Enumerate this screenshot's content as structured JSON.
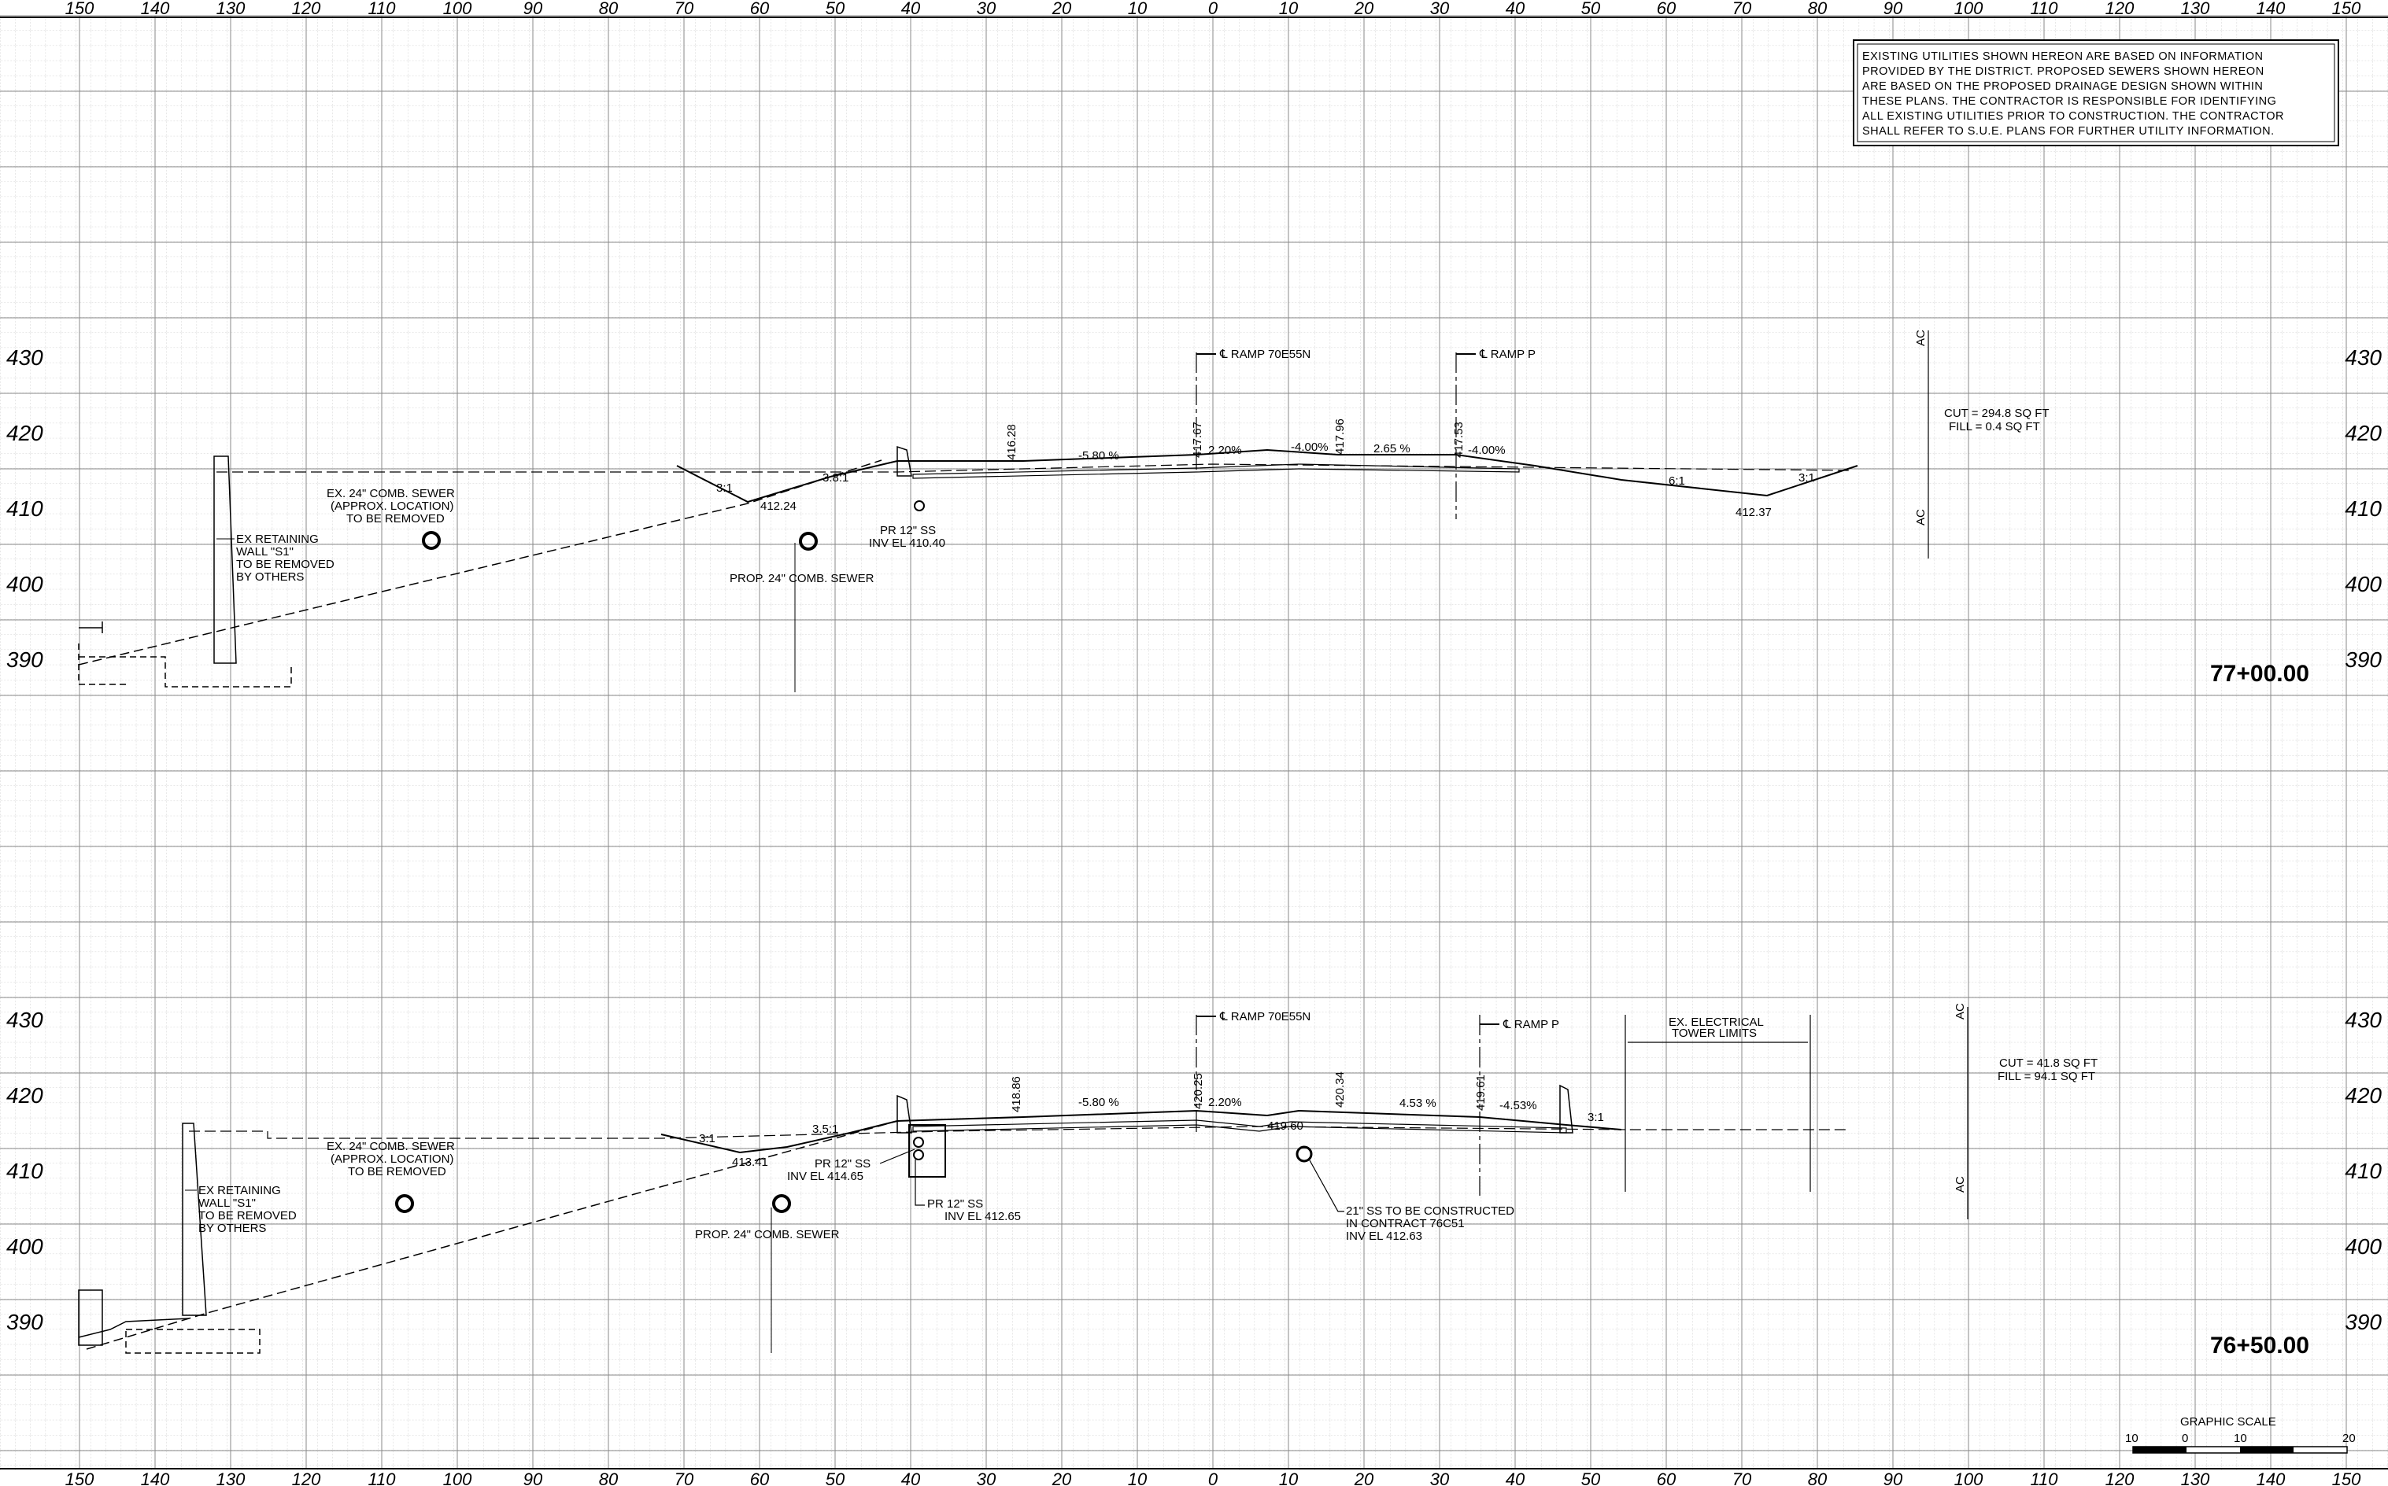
{
  "offset_ticks": [
    "150",
    "140",
    "130",
    "120",
    "110",
    "100",
    "90",
    "80",
    "70",
    "60",
    "50",
    "40",
    "30",
    "20",
    "10",
    "0",
    "10",
    "20",
    "30",
    "40",
    "50",
    "60",
    "70",
    "80",
    "90",
    "100",
    "110",
    "120",
    "130",
    "140",
    "150"
  ],
  "note_lines": [
    "EXISTING UTILITIES SHOWN HEREON ARE BASED ON INFORMATION",
    "PROVIDED BY THE DISTRICT.  PROPOSED SEWERS SHOWN HEREON",
    "ARE BASED ON THE PROPOSED DRAINAGE DESIGN SHOWN WITHIN",
    "THESE PLANS.  THE CONTRACTOR IS RESPONSIBLE FOR IDENTIFYING",
    "ALL EXISTING UTILITIES PRIOR TO CONSTRUCTION.  THE CONTRACTOR",
    "SHALL REFER TO S.U.E. PLANS FOR FURTHER UTILITY INFORMATION."
  ],
  "top": {
    "station": "77+00.00",
    "elevations": [
      "430",
      "420",
      "410",
      "400",
      "390"
    ],
    "cut_fill": [
      "CUT = 294.8 SQ FT",
      "FILL = 0.4 SQ FT"
    ],
    "cl_ramp_main": "℄ RAMP 70E55N",
    "cl_ramp_p": "℄ RAMP P",
    "retaining_wall": [
      "EX RETAINING",
      "WALL \"S1\"",
      "TO BE REMOVED",
      "BY OTHERS"
    ],
    "ex_sewer": [
      "EX. 24\" COMB. SEWER",
      "(APPROX. LOCATION)",
      "TO BE REMOVED"
    ],
    "prop_sewer": "PROP. 24\" COMB. SEWER",
    "pr_ss": [
      "PR 12\" SS",
      "INV EL 410.40"
    ],
    "elevs": {
      "a": "412.24",
      "b": "416.28",
      "c": "417.67",
      "d": "417.96",
      "e": "417.53",
      "f": "412.37"
    },
    "slopes": {
      "s1": "3:1",
      "s2": "3.8:1",
      "s3": "-5.80 %",
      "s4": "2.20%",
      "s5": "-4.00%",
      "s6": "2.65 %",
      "s7": "-4.00%",
      "s8": "6:1",
      "s9": "3:1"
    },
    "ac": "AC"
  },
  "bottom": {
    "station": "76+50.00",
    "elevations": [
      "430",
      "420",
      "410",
      "400",
      "390"
    ],
    "cut_fill": [
      "CUT = 41.8 SQ FT",
      "FILL = 94.1 SQ FT"
    ],
    "cl_ramp_main": "℄ RAMP 70E55N",
    "cl_ramp_p": "℄ RAMP P",
    "tower": [
      "EX. ELECTRICAL",
      "TOWER LIMITS"
    ],
    "retaining_wall": [
      "EX RETAINING",
      "WALL \"S1\"",
      "TO BE REMOVED",
      "BY OTHERS"
    ],
    "ex_sewer": [
      "EX. 24\" COMB. SEWER",
      "(APPROX. LOCATION)",
      "TO BE REMOVED"
    ],
    "prop_sewer": "PROP. 24\" COMB. SEWER",
    "pr_ss_a": [
      "PR 12\" SS",
      "INV EL 414.65"
    ],
    "pr_ss_b": [
      "PR 12\" SS",
      "INV EL 412.65"
    ],
    "ss21": [
      "21\" SS TO BE CONSTRUCTED",
      "IN CONTRACT 76C51",
      "INV EL 412.63"
    ],
    "elevs": {
      "a": "413.41",
      "b": "418.86",
      "c": "420.25",
      "d": "419.60",
      "e": "420.34",
      "f": "419.61"
    },
    "slopes": {
      "s1": "3:1",
      "s2": "3.5:1",
      "s3": "-5.80 %",
      "s4": "2.20%",
      "s5": "4.53 %",
      "s6": "-4.53%",
      "s7": "3:1"
    },
    "ac": "AC"
  },
  "graphic_scale": {
    "title": "GRAPHIC SCALE",
    "ticks": [
      "10",
      "0",
      "10",
      "20"
    ]
  }
}
